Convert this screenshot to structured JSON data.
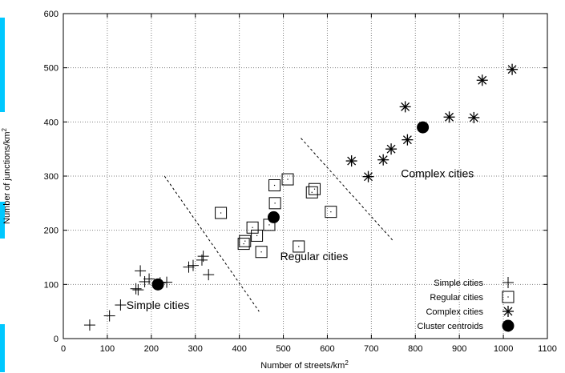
{
  "chart_data": {
    "type": "scatter",
    "xlabel": "Number of streets/km",
    "xlabel_sup": "2",
    "ylabel": "Number of junctions/km",
    "ylabel_sup": "2",
    "xlim": [
      0,
      1100
    ],
    "ylim": [
      0,
      600
    ],
    "xticks": [
      0,
      100,
      200,
      300,
      400,
      500,
      600,
      700,
      800,
      900,
      1000,
      1100
    ],
    "yticks": [
      0,
      100,
      200,
      300,
      400,
      500,
      600
    ],
    "grid": true,
    "legend_position": "bottom-right",
    "series": [
      {
        "name": "Simple cities",
        "marker": "plus",
        "points": [
          {
            "x": 60,
            "y": 25
          },
          {
            "x": 105,
            "y": 42
          },
          {
            "x": 130,
            "y": 62
          },
          {
            "x": 165,
            "y": 92
          },
          {
            "x": 170,
            "y": 90
          },
          {
            "x": 175,
            "y": 125
          },
          {
            "x": 185,
            "y": 105
          },
          {
            "x": 195,
            "y": 110
          },
          {
            "x": 220,
            "y": 103
          },
          {
            "x": 235,
            "y": 104
          },
          {
            "x": 285,
            "y": 132
          },
          {
            "x": 295,
            "y": 135
          },
          {
            "x": 315,
            "y": 145
          },
          {
            "x": 318,
            "y": 152
          },
          {
            "x": 330,
            "y": 118
          }
        ]
      },
      {
        "name": "Regular cities",
        "marker": "square",
        "points": [
          {
            "x": 358,
            "y": 232
          },
          {
            "x": 410,
            "y": 175
          },
          {
            "x": 413,
            "y": 180
          },
          {
            "x": 430,
            "y": 205
          },
          {
            "x": 440,
            "y": 190
          },
          {
            "x": 450,
            "y": 160
          },
          {
            "x": 468,
            "y": 210
          },
          {
            "x": 480,
            "y": 283
          },
          {
            "x": 481,
            "y": 250
          },
          {
            "x": 510,
            "y": 294
          },
          {
            "x": 535,
            "y": 170
          },
          {
            "x": 565,
            "y": 270
          },
          {
            "x": 571,
            "y": 276
          },
          {
            "x": 608,
            "y": 234
          }
        ]
      },
      {
        "name": "Complex cities",
        "marker": "star",
        "points": [
          {
            "x": 655,
            "y": 328
          },
          {
            "x": 693,
            "y": 299
          },
          {
            "x": 727,
            "y": 330
          },
          {
            "x": 745,
            "y": 350
          },
          {
            "x": 777,
            "y": 428
          },
          {
            "x": 782,
            "y": 367
          },
          {
            "x": 877,
            "y": 409
          },
          {
            "x": 933,
            "y": 408
          },
          {
            "x": 952,
            "y": 477
          },
          {
            "x": 1020,
            "y": 497
          }
        ]
      },
      {
        "name": "Cluster centroids",
        "marker": "dot",
        "points": [
          {
            "x": 215,
            "y": 100
          },
          {
            "x": 478,
            "y": 224
          },
          {
            "x": 817,
            "y": 390
          }
        ]
      }
    ],
    "dividers": [
      {
        "x1": 230,
        "y1": 300,
        "x2": 445,
        "y2": 50
      },
      {
        "x1": 540,
        "y1": 370,
        "x2": 750,
        "y2": 180
      }
    ],
    "annotations": [
      {
        "text": "Simple cities",
        "x": 215,
        "y": 55
      },
      {
        "text": "Regular cities",
        "x": 570,
        "y": 145
      },
      {
        "text": "Complex cities",
        "x": 850,
        "y": 298
      }
    ]
  }
}
